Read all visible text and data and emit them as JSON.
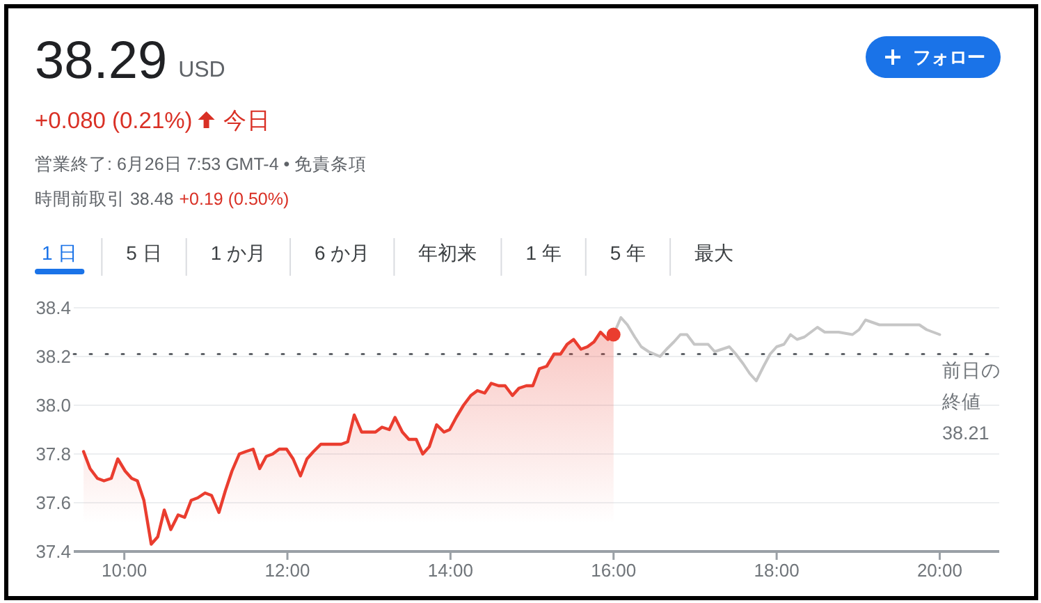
{
  "chart_data": {
    "type": "line",
    "title": "38.29",
    "subtitle": "USD",
    "annotations": [
      "+0.080 (0.21%)",
      "今日",
      "営業終了: 6月26日 7:53 GMT-4 • 免責条項",
      "時間前取引 38.48",
      "+0.19 (0.50%)",
      "フォロー",
      "1 日",
      "5 日",
      "1 か月",
      "6 か月",
      "年初来",
      "1 年",
      "5 年",
      "最大"
    ],
    "xlim": [
      9.38,
      20.73
    ],
    "xticks": [
      {
        "value": 10,
        "label": "10:00"
      },
      {
        "value": 12,
        "label": "12:00"
      },
      {
        "value": 14,
        "label": "14:00"
      },
      {
        "value": 16,
        "label": "16:00"
      },
      {
        "value": 18,
        "label": "18:00"
      },
      {
        "value": 20,
        "label": "20:00"
      }
    ],
    "ylim": [
      37.4,
      38.4
    ],
    "yticks": [
      37.4,
      37.6,
      37.8,
      {
        "value": 38,
        "label": "38.0"
      },
      38.2,
      38.4
    ],
    "grid": "y",
    "ref_lines": [
      {
        "axis": "y",
        "value": 38.21,
        "label": "前日の終値 38.21",
        "line_style": "dotted",
        "color": "#5f6368"
      }
    ],
    "series": [
      {
        "type": "area",
        "color": "#ea3d2f",
        "x": [
          9.5,
          9.58,
          9.67,
          9.75,
          9.84,
          9.92,
          10.01,
          10.09,
          10.16,
          10.24,
          10.33,
          10.41,
          10.49,
          10.57,
          10.66,
          10.74,
          10.82,
          10.9,
          10.99,
          11.07,
          11.16,
          11.24,
          11.32,
          11.41,
          11.49,
          11.58,
          11.66,
          11.74,
          11.82,
          11.9,
          11.99,
          12.07,
          12.16,
          12.24,
          12.32,
          12.41,
          12.66,
          12.74,
          12.82,
          12.91,
          13.08,
          13.16,
          13.25,
          13.32,
          13.41,
          13.49,
          13.58,
          13.66,
          13.74,
          13.83,
          13.92,
          13.99,
          14.07,
          14.16,
          14.25,
          14.33,
          14.42,
          14.5,
          14.59,
          14.67,
          14.76,
          14.84,
          14.93,
          15.01,
          15.09,
          15.18,
          15.27,
          15.35,
          15.43,
          15.51,
          15.6,
          15.68,
          15.76,
          15.84,
          15.93,
          16.0
        ],
        "values": [
          37.81,
          37.74,
          37.7,
          37.69,
          37.7,
          37.78,
          37.73,
          37.7,
          37.69,
          37.61,
          37.43,
          37.46,
          37.57,
          37.49,
          37.55,
          37.54,
          37.61,
          37.62,
          37.64,
          37.63,
          37.56,
          37.65,
          37.73,
          37.8,
          37.81,
          37.82,
          37.74,
          37.79,
          37.8,
          37.82,
          37.82,
          37.78,
          37.71,
          37.78,
          37.81,
          37.84,
          37.84,
          37.85,
          37.96,
          37.89,
          37.89,
          37.91,
          37.9,
          37.95,
          37.89,
          37.86,
          37.86,
          37.8,
          37.83,
          37.92,
          37.89,
          37.9,
          37.95,
          38.0,
          38.04,
          38.06,
          38.05,
          38.09,
          38.08,
          38.08,
          38.04,
          38.07,
          38.08,
          38.08,
          38.15,
          38.16,
          38.21,
          38.21,
          38.25,
          38.27,
          38.23,
          38.24,
          38.26,
          38.3,
          38.27,
          38.29
        ]
      },
      {
        "type": "line",
        "color": "#c6c6c6",
        "x": [
          16.0,
          16.09,
          16.17,
          16.26,
          16.34,
          16.43,
          16.57,
          16.65,
          16.74,
          16.82,
          16.9,
          16.99,
          17.07,
          17.16,
          17.24,
          17.33,
          17.42,
          17.5,
          17.59,
          17.67,
          17.75,
          17.84,
          17.92,
          18.0,
          18.09,
          18.17,
          18.25,
          18.34,
          18.42,
          18.5,
          18.59,
          18.76,
          18.93,
          19.01,
          19.09,
          19.26,
          19.42,
          19.75,
          19.84,
          20.0
        ],
        "values": [
          38.29,
          38.36,
          38.33,
          38.28,
          38.24,
          38.22,
          38.2,
          38.23,
          38.26,
          38.29,
          38.29,
          38.25,
          38.25,
          38.25,
          38.22,
          38.23,
          38.24,
          38.21,
          38.17,
          38.13,
          38.1,
          38.16,
          38.21,
          38.24,
          38.25,
          38.29,
          38.27,
          38.28,
          38.3,
          38.32,
          38.3,
          38.3,
          38.29,
          38.31,
          38.35,
          38.33,
          38.33,
          38.33,
          38.31,
          38.29
        ]
      },
      {
        "type": "scatter",
        "color": "#ea3d2f",
        "x": [
          16.0
        ],
        "values": [
          38.29
        ]
      }
    ]
  }
}
